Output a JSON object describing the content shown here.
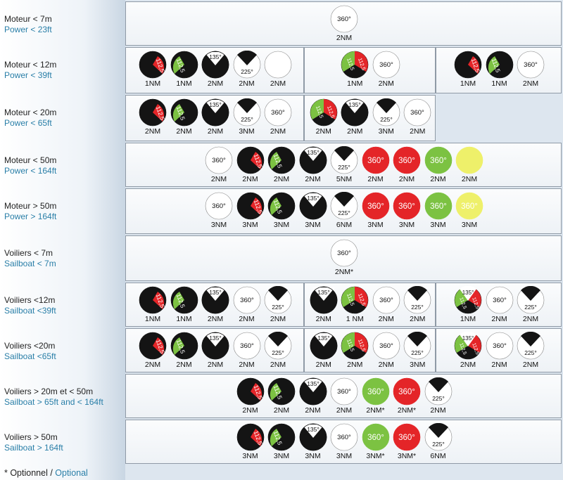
{
  "rows": [
    {
      "fr": "Moteur < 7m",
      "en": "Power < 23ft",
      "groups": [
        [
          [
            "w360",
            "2NM"
          ]
        ]
      ]
    },
    {
      "fr": "Moteur < 12m",
      "en": "Power < 39ft",
      "groups": [
        [
          [
            "port",
            "1NM"
          ],
          [
            "stbd",
            "1NM"
          ],
          [
            "mast",
            "2NM"
          ],
          [
            "stern",
            "2NM"
          ],
          [
            "white",
            "2NM"
          ]
        ],
        [
          [
            "bicolor",
            "1NM"
          ],
          [
            "w360",
            "2NM"
          ]
        ],
        [
          [
            "port",
            "1NM"
          ],
          [
            "stbd",
            "1NM"
          ],
          [
            "w360",
            "2NM"
          ]
        ]
      ]
    },
    {
      "fr": "Moteur < 20m",
      "en": "Power < 65ft",
      "groups": [
        [
          [
            "port",
            "2NM"
          ],
          [
            "stbd",
            "2NM"
          ],
          [
            "mast",
            "2NM"
          ],
          [
            "stern",
            "3NM"
          ],
          [
            "w360",
            "2NM"
          ]
        ],
        [
          [
            "bicolor",
            "2NM"
          ],
          [
            "mast",
            "2NM"
          ],
          [
            "stern",
            "3NM"
          ],
          [
            "w360",
            "2NM"
          ]
        ]
      ]
    },
    {
      "fr": "Moteur < 50m",
      "en": "Power < 164ft",
      "groups": [
        [
          [
            "w360",
            "2NM"
          ],
          [
            "port",
            "2NM"
          ],
          [
            "stbd",
            "2NM"
          ],
          [
            "mast",
            "2NM"
          ],
          [
            "stern",
            "5NM"
          ],
          [
            "r360",
            "2NM"
          ],
          [
            "r360",
            "2NM"
          ],
          [
            "g360",
            "2NM"
          ],
          [
            "yellow",
            "2NM"
          ]
        ]
      ]
    },
    {
      "fr": "Moteur > 50m",
      "en": "Power > 164ft",
      "groups": [
        [
          [
            "w360",
            "3NM"
          ],
          [
            "port",
            "3NM"
          ],
          [
            "stbd",
            "3NM"
          ],
          [
            "mast",
            "3NM"
          ],
          [
            "stern",
            "6NM"
          ],
          [
            "r360",
            "3NM"
          ],
          [
            "r360",
            "3NM"
          ],
          [
            "g360",
            "3NM"
          ],
          [
            "y360",
            "3NM"
          ]
        ]
      ]
    },
    {
      "fr": "Voiliers < 7m",
      "en": "Sailboat < 7m",
      "groups": [
        [
          [
            "w360",
            "2NM*"
          ]
        ]
      ]
    },
    {
      "fr": "Voiliers <12m",
      "en": "Sailboat <39ft",
      "groups": [
        [
          [
            "port",
            "1NM"
          ],
          [
            "stbd",
            "1NM"
          ],
          [
            "mast",
            "2NM"
          ],
          [
            "w360",
            "2NM"
          ],
          [
            "stern",
            "2NM"
          ]
        ],
        [
          [
            "mast",
            "2NM"
          ],
          [
            "bicolor",
            "1 NM"
          ],
          [
            "w360",
            "2NM"
          ],
          [
            "stern",
            "2NM"
          ]
        ],
        [
          [
            "tricolor",
            "1NM"
          ],
          [
            "w360",
            "2NM"
          ],
          [
            "stern",
            "2NM"
          ]
        ]
      ]
    },
    {
      "fr": "Voiliers <20m",
      "en": "Sailboat <65ft",
      "groups": [
        [
          [
            "port",
            "2NM"
          ],
          [
            "stbd",
            "2NM"
          ],
          [
            "mast",
            "2NM"
          ],
          [
            "w360",
            "2NM"
          ],
          [
            "stern",
            "2NM"
          ]
        ],
        [
          [
            "mast",
            "2NM"
          ],
          [
            "bicolor",
            "2NM"
          ],
          [
            "w360",
            "2NM"
          ],
          [
            "stern",
            "3NM"
          ]
        ],
        [
          [
            "tricolor",
            "2NM"
          ],
          [
            "w360",
            "2NM"
          ],
          [
            "stern",
            "2NM"
          ]
        ]
      ]
    },
    {
      "fr": "Voiliers > 20m et < 50m",
      "en": "Sailboat > 65ft and < 164ft",
      "groups": [
        [
          [
            "port",
            "2NM"
          ],
          [
            "stbd",
            "2NM"
          ],
          [
            "mast",
            "2NM"
          ],
          [
            "w360",
            "2NM"
          ],
          [
            "g360",
            "2NM*"
          ],
          [
            "r360",
            "2NM*"
          ],
          [
            "stern",
            "2NM"
          ]
        ]
      ]
    },
    {
      "fr": "Voiliers > 50m",
      "en": "Sailboat > 164ft",
      "groups": [
        [
          [
            "port",
            "3NM"
          ],
          [
            "stbd",
            "3NM"
          ],
          [
            "mast",
            "3NM"
          ],
          [
            "w360",
            "3NM"
          ],
          [
            "g360",
            "3NM*"
          ],
          [
            "r360",
            "3NM*"
          ],
          [
            "stern",
            "6NM"
          ]
        ]
      ]
    }
  ],
  "symbols": {
    "port": "112,5°",
    "stbd": "112,5°",
    "mast": "135°",
    "stern": "225°",
    "w360": "360°",
    "r360": "360°",
    "g360": "360°",
    "y360": "360°",
    "bicolor": "112,5°",
    "tricolor": "135°"
  },
  "colors": {
    "red": "#e42528",
    "green": "#7cc242",
    "yellow": "#eef06a",
    "black": "#141414",
    "white": "#ffffff"
  },
  "footnote": {
    "fr": "* Optionnel / ",
    "en": "Optional"
  }
}
